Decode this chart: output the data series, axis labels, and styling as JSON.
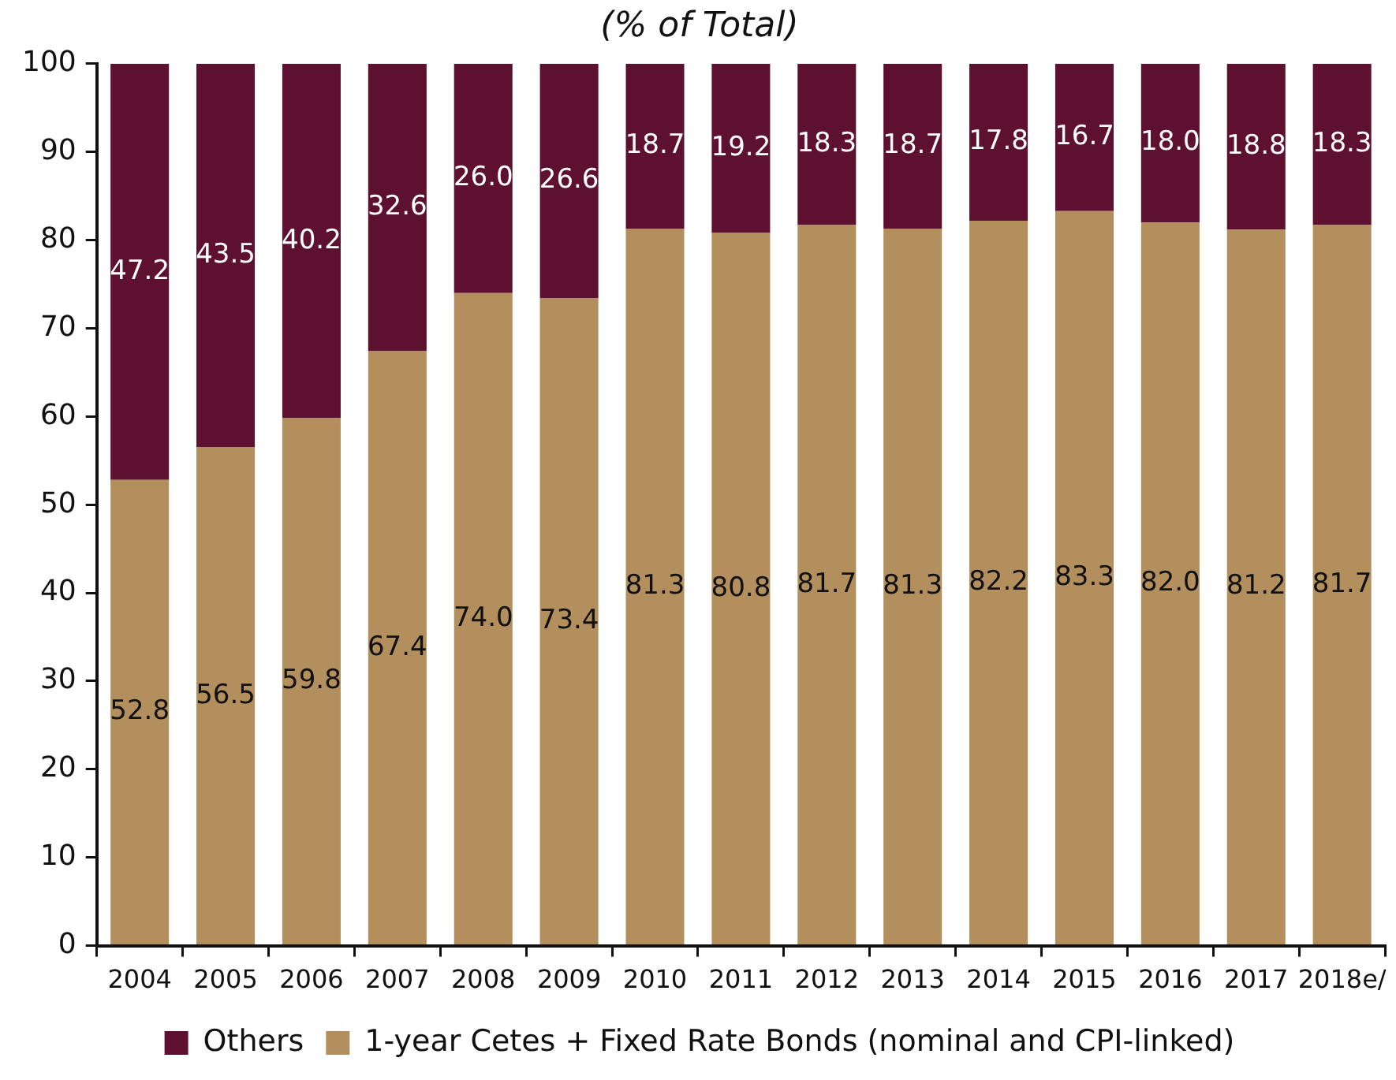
{
  "chart_data": {
    "type": "bar",
    "title": "(% of Total)",
    "categories": [
      "2004",
      "2005",
      "2006",
      "2007",
      "2008",
      "2009",
      "2010",
      "2011",
      "2012",
      "2013",
      "2014",
      "2015",
      "2016",
      "2017",
      "2018e/"
    ],
    "stacked": true,
    "series": [
      {
        "name": "1-year Cetes + Fixed Rate Bonds (nominal and CPI-linked)",
        "color": "#b38f5e",
        "values": [
          52.8,
          56.5,
          59.8,
          67.4,
          74.0,
          73.4,
          81.3,
          80.8,
          81.7,
          81.3,
          82.2,
          83.3,
          82.0,
          81.2,
          81.7
        ],
        "value_labels": [
          "52.8",
          "56.5",
          "59.8",
          "67.4",
          "74.0",
          "73.4",
          "81.3",
          "80.8",
          "81.7",
          "81.3",
          "82.2",
          "83.3",
          "82.0",
          "81.2",
          "81.7"
        ]
      },
      {
        "name": "Others",
        "color": "#5e1030",
        "values": [
          47.2,
          43.5,
          40.2,
          32.6,
          26.0,
          26.6,
          18.7,
          19.2,
          18.3,
          18.7,
          17.8,
          16.7,
          18.0,
          18.8,
          18.3
        ],
        "value_labels": [
          "47.2",
          "43.5",
          "40.2",
          "32.6",
          "26.0",
          "26.6",
          "18.7",
          "19.2",
          "18.3",
          "18.7",
          "17.8",
          "16.7",
          "18.0",
          "18.8",
          "18.3"
        ]
      }
    ],
    "ylim": [
      0,
      100
    ],
    "yticks": [
      0,
      10,
      20,
      30,
      40,
      50,
      60,
      70,
      80,
      90,
      100
    ],
    "grid": false,
    "legend": "bottom"
  }
}
